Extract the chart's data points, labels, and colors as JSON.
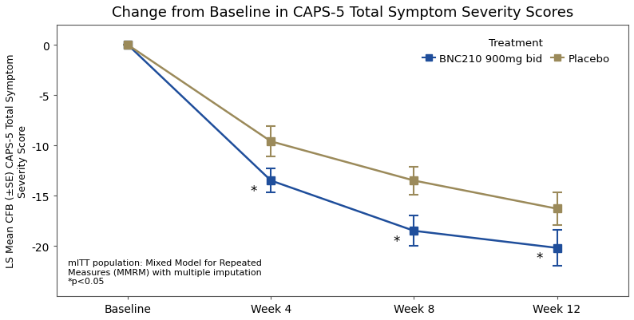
{
  "title": "Change from Baseline in CAPS-5 Total Symptom Severity Scores",
  "ylabel": "LS Mean CFB (±SE) CAPS-5 Total Symptom\nSeverity Score",
  "x_labels": [
    "Baseline",
    "Week 4",
    "Week 8",
    "Week 12"
  ],
  "x_positions": [
    0,
    1,
    2,
    3
  ],
  "treatment_values": [
    0,
    -13.5,
    -18.5,
    -20.2
  ],
  "treatment_errors": [
    0,
    1.2,
    1.5,
    1.8
  ],
  "placebo_values": [
    0,
    -9.6,
    -13.5,
    -16.3
  ],
  "placebo_errors": [
    0,
    1.5,
    1.4,
    1.6
  ],
  "treatment_color": "#1F4E9B",
  "placebo_color": "#9B8A5A",
  "treatment_label": "BNC210 900mg bid",
  "placebo_label": "Placebo",
  "legend_prefix": "Treatment",
  "ylim": [
    -25,
    2
  ],
  "yticks": [
    0,
    -5,
    -10,
    -15,
    -20
  ],
  "significance_treatment_indices": [
    1,
    2,
    3
  ],
  "annotation_text": "mITT population: Mixed Model for Repeated\nMeasures (MMRM) with multiple imputation\n*p<0.05",
  "background_color": "#FFFFFF",
  "title_fontsize": 13,
  "label_fontsize": 9,
  "tick_fontsize": 10,
  "annotation_fontsize": 8
}
